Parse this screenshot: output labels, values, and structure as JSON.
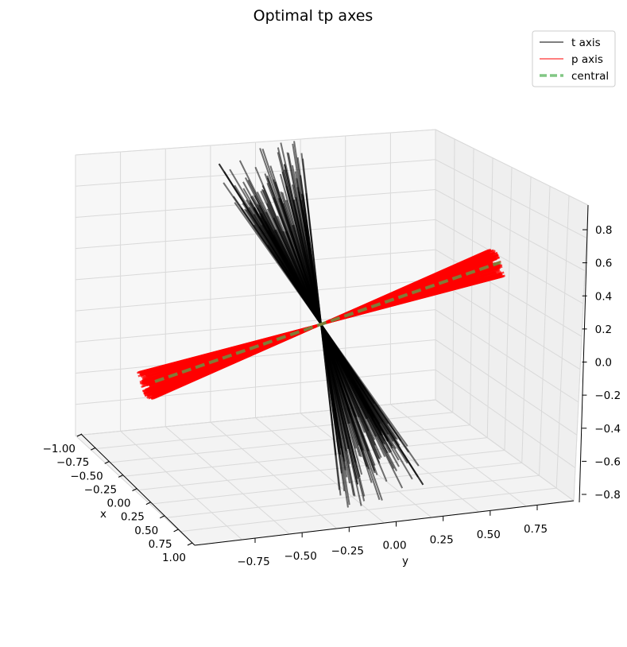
{
  "chart_data": {
    "type": "line",
    "projection": "3d",
    "title": "Optimal tp axes",
    "xlabel": "x",
    "ylabel": "y",
    "zlabel": "",
    "xlim": [
      -1.0,
      1.0
    ],
    "ylim": [
      -0.95,
      0.95
    ],
    "zlim": [
      -0.85,
      0.9
    ],
    "x_ticks": [
      "−1.00",
      "−0.75",
      "−0.50",
      "−0.25",
      "0.00",
      "0.25",
      "0.50",
      "0.75",
      "1.00"
    ],
    "y_ticks": [
      "−0.75",
      "−0.50",
      "−0.25",
      "0.00",
      "0.25",
      "0.50",
      "0.75"
    ],
    "z_ticks": [
      "−0.8",
      "−0.6",
      "−0.4",
      "−0.2",
      "0.0",
      "0.2",
      "0.4",
      "0.6",
      "0.8"
    ],
    "grid": true,
    "legend_position": "top-right",
    "series": [
      {
        "name": "t axis",
        "color": "#000000",
        "style": "solid",
        "description_values": {
          "central_direction": [
            0.0,
            0.5,
            -0.85
          ],
          "spread_deg": 8,
          "count": 110
        }
      },
      {
        "name": "p axis",
        "color": "#ff0000",
        "style": "solid",
        "description_values": {
          "central_direction": [
            0.0,
            0.95,
            0.25
          ],
          "spread_deg": 3,
          "count": 110
        }
      },
      {
        "name": "central",
        "color": "#4caf50",
        "style": "dashed",
        "values": [
          [
            0,
            -0.95,
            -0.25
          ],
          [
            0,
            0.95,
            0.25
          ]
        ]
      }
    ]
  }
}
